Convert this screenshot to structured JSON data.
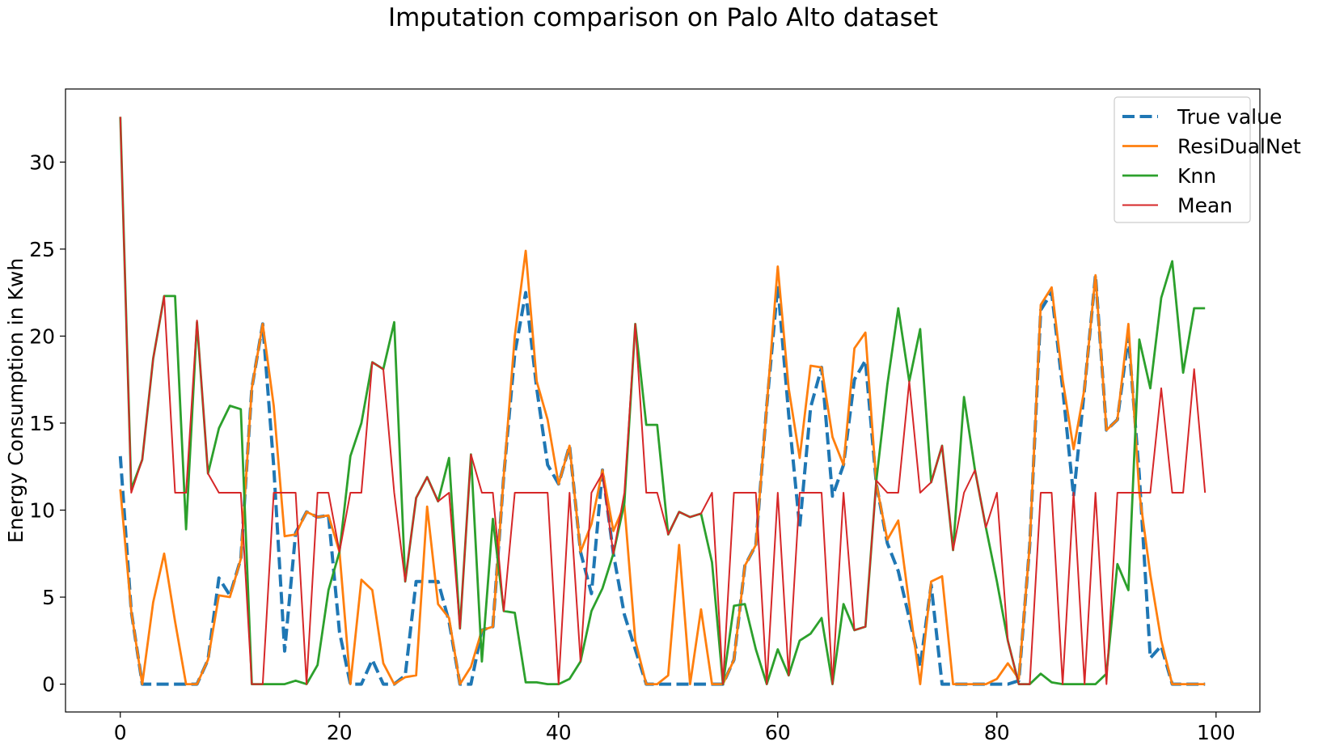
{
  "chart_data": {
    "type": "line",
    "title": "Imputation comparison on Palo Alto dataset",
    "xlabel": "",
    "ylabel": "Energy Consumption in Kwh",
    "xlim": [
      -5,
      104
    ],
    "ylim": [
      -1.6,
      34.2
    ],
    "xticks": [
      0,
      20,
      40,
      60,
      80,
      100
    ],
    "yticks": [
      0,
      5,
      10,
      15,
      20,
      25,
      30
    ],
    "grid": false,
    "legend_position": "top-right",
    "x": [
      0,
      1,
      2,
      3,
      4,
      5,
      6,
      7,
      8,
      9,
      10,
      11,
      12,
      13,
      14,
      15,
      16,
      17,
      18,
      19,
      20,
      21,
      22,
      23,
      24,
      25,
      26,
      27,
      28,
      29,
      30,
      31,
      32,
      33,
      34,
      35,
      36,
      37,
      38,
      39,
      40,
      41,
      42,
      43,
      44,
      45,
      46,
      47,
      48,
      49,
      50,
      51,
      52,
      53,
      54,
      55,
      56,
      57,
      58,
      59,
      60,
      61,
      62,
      63,
      64,
      65,
      66,
      67,
      68,
      69,
      70,
      71,
      72,
      73,
      74,
      75,
      76,
      77,
      78,
      79,
      80,
      81,
      82,
      83,
      84,
      85,
      86,
      87,
      88,
      89,
      90,
      91,
      92,
      93,
      94,
      95,
      96,
      97,
      98,
      99
    ],
    "series": [
      {
        "name": "True value",
        "color": "#1f77b4",
        "style": "dashed",
        "values": [
          13.1,
          4.2,
          0,
          0,
          0,
          0,
          0,
          0,
          1.4,
          6.1,
          5.1,
          7.2,
          17.0,
          20.7,
          12.5,
          1.9,
          8.7,
          9.9,
          9.6,
          9.7,
          3.0,
          0,
          0,
          1.4,
          0,
          0,
          0.5,
          5.9,
          5.9,
          5.9,
          3.6,
          0,
          0,
          3.1,
          3.3,
          12.0,
          19.0,
          22.5,
          17.0,
          12.6,
          11.5,
          13.7,
          7.6,
          5.2,
          12.3,
          7.5,
          4.0,
          2.0,
          0,
          0,
          0,
          0,
          0,
          0,
          0,
          0,
          1.4,
          6.8,
          8.0,
          16.0,
          22.9,
          15.5,
          9.0,
          15.9,
          18.2,
          10.8,
          12.6,
          17.5,
          18.6,
          11.5,
          8.1,
          6.5,
          3.8,
          1.0,
          5.7,
          0,
          0,
          0,
          0,
          0,
          0,
          0,
          0.2,
          8.0,
          21.5,
          22.5,
          17.0,
          10.8,
          17.0,
          23.5,
          14.6,
          15.2,
          20.0,
          12.0,
          1.5,
          2.2,
          0,
          0,
          0,
          0
        ]
      },
      {
        "name": "ResiDualNet",
        "color": "#ff7f0e",
        "style": "solid",
        "values": [
          11.2,
          4.2,
          0,
          4.7,
          7.5,
          3.6,
          0,
          0,
          1.4,
          5.1,
          5.0,
          7.2,
          17.0,
          20.7,
          16.0,
          8.5,
          8.6,
          9.9,
          9.6,
          9.7,
          7.6,
          0,
          6.0,
          5.4,
          1.2,
          0,
          0.4,
          0.5,
          10.2,
          4.6,
          3.8,
          0,
          1.0,
          3.1,
          3.3,
          12.0,
          20.0,
          24.9,
          17.4,
          15.2,
          11.5,
          13.7,
          7.6,
          9.2,
          12.3,
          8.8,
          10.3,
          2.5,
          0,
          0,
          0.5,
          8.0,
          0,
          4.3,
          0,
          0,
          1.4,
          6.8,
          8.0,
          16.0,
          24.0,
          17.0,
          13.0,
          18.3,
          18.2,
          14.2,
          12.6,
          19.3,
          20.2,
          11.5,
          8.3,
          9.4,
          4.6,
          0,
          5.9,
          6.2,
          0,
          0,
          0,
          0,
          0.3,
          1.2,
          0.3,
          8.0,
          21.8,
          22.8,
          17.5,
          13.5,
          17.0,
          23.5,
          14.6,
          15.2,
          20.7,
          11.0,
          6.3,
          2.5,
          0,
          0,
          0,
          0
        ]
      },
      {
        "name": "Knn",
        "color": "#2ca02c",
        "style": "solid",
        "values": [
          32.6,
          11.2,
          12.9,
          18.7,
          22.3,
          22.3,
          8.9,
          20.8,
          12.1,
          14.7,
          16.0,
          15.8,
          0,
          0,
          0,
          0,
          0.2,
          0,
          1.1,
          5.4,
          7.6,
          13.1,
          15.0,
          18.5,
          18.1,
          20.8,
          5.9,
          10.7,
          11.9,
          10.5,
          13.0,
          3.2,
          13.2,
          1.3,
          9.5,
          4.2,
          4.1,
          0.1,
          0.1,
          0,
          0,
          0.3,
          1.3,
          4.2,
          5.5,
          7.5,
          10.4,
          20.7,
          14.9,
          14.9,
          8.6,
          9.9,
          9.6,
          9.8,
          7.0,
          0,
          4.5,
          4.6,
          2.0,
          0,
          2.0,
          0.5,
          2.5,
          2.9,
          3.8,
          0,
          4.6,
          3.1,
          3.3,
          11.7,
          17.2,
          21.6,
          17.4,
          20.4,
          11.6,
          13.7,
          7.7,
          16.5,
          12.3,
          9.0,
          5.9,
          2.5,
          0,
          0,
          0.6,
          0.1,
          0,
          0,
          0,
          0,
          0.6,
          6.9,
          5.4,
          19.8,
          17.0,
          22.2,
          24.3,
          17.9,
          21.6,
          21.6
        ]
      },
      {
        "name": "Mean",
        "color": "#d62728",
        "style": "solid",
        "values": [
          32.6,
          11.0,
          12.9,
          18.7,
          22.3,
          11.0,
          11.0,
          20.9,
          12.1,
          11.0,
          11.0,
          11.0,
          0,
          0,
          11.0,
          11.0,
          11.0,
          0,
          11.0,
          11.0,
          7.6,
          11.0,
          11.0,
          18.5,
          18.1,
          11.0,
          5.9,
          10.7,
          11.9,
          10.5,
          11.0,
          3.2,
          13.2,
          11.0,
          11.0,
          4.2,
          11.0,
          11.0,
          11.0,
          11.0,
          0,
          11.0,
          1.3,
          11.0,
          12.1,
          7.5,
          11.0,
          20.7,
          11.0,
          11.0,
          8.6,
          9.9,
          9.6,
          9.8,
          11.0,
          0,
          11.0,
          11.0,
          11.0,
          0,
          11.0,
          0.5,
          11.0,
          11.0,
          11.0,
          0,
          11.0,
          3.1,
          3.3,
          11.7,
          11.0,
          11.0,
          17.4,
          11.0,
          11.6,
          13.7,
          7.7,
          11.0,
          12.3,
          9.0,
          11.0,
          2.5,
          0,
          0,
          11.0,
          11.0,
          0,
          11.0,
          0,
          11.0,
          0,
          11.0,
          11.0,
          11.0,
          11.0,
          17.0,
          11.0,
          11.0,
          18.1,
          11.0
        ]
      }
    ]
  }
}
